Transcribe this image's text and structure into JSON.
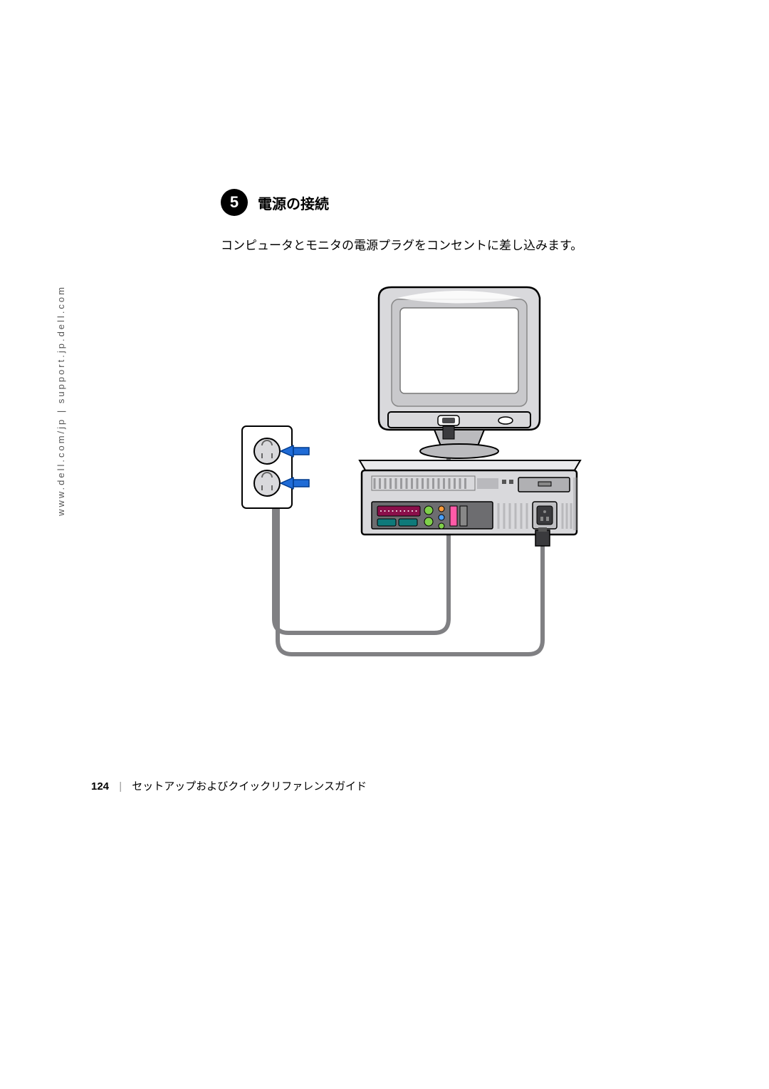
{
  "sidebar": {
    "url_text": "www.dell.com/jp | support.jp.dell.com"
  },
  "step": {
    "number": "5",
    "title": "電源の接続",
    "description": "コンピュータとモニタの電源プラグをコンセントに差し込みます。"
  },
  "diagram": {
    "type": "infographic",
    "background": "#ffffff",
    "monitor": {
      "body_fill": "#d9d9dc",
      "body_stroke": "#000000",
      "screen_fill": "#ffffff",
      "screen_inner_fill": "#c9c9cc",
      "highlight_fill": "#ffffff",
      "stand_fill": "#bbbbbe",
      "power_port_fill": "#4a4a4d"
    },
    "computer": {
      "body_fill": "#d9d9dc",
      "body_stroke": "#000000",
      "top_fill": "#eaeaec",
      "vent_fill": "#9a9a9d",
      "drive_fill": "#b0b0b3",
      "port_panel_fill": "#6d6d70",
      "port_parallel_fill": "#8a0f4a",
      "port_serial_fill": "#0e7a7a",
      "port_audio1_fill": "#7fd04a",
      "port_audio2_fill": "#ff9a3a",
      "port_audio3_fill": "#ff5aa8",
      "power_socket_fill": "#3a3a3d"
    },
    "outlet": {
      "plate_fill": "#ffffff",
      "plate_stroke": "#000000",
      "socket_fill": "#d9d9dc",
      "socket_stroke": "#000000"
    },
    "cables": {
      "color": "#808083",
      "width": 6,
      "plug_fill": "#3a3a3d"
    },
    "arrows": {
      "fill": "#1f6bd6",
      "stroke": "#003a8c"
    }
  },
  "footer": {
    "page_number": "124",
    "separator": "|",
    "doc_title": "セットアップおよびクイックリファレンスガイド"
  }
}
